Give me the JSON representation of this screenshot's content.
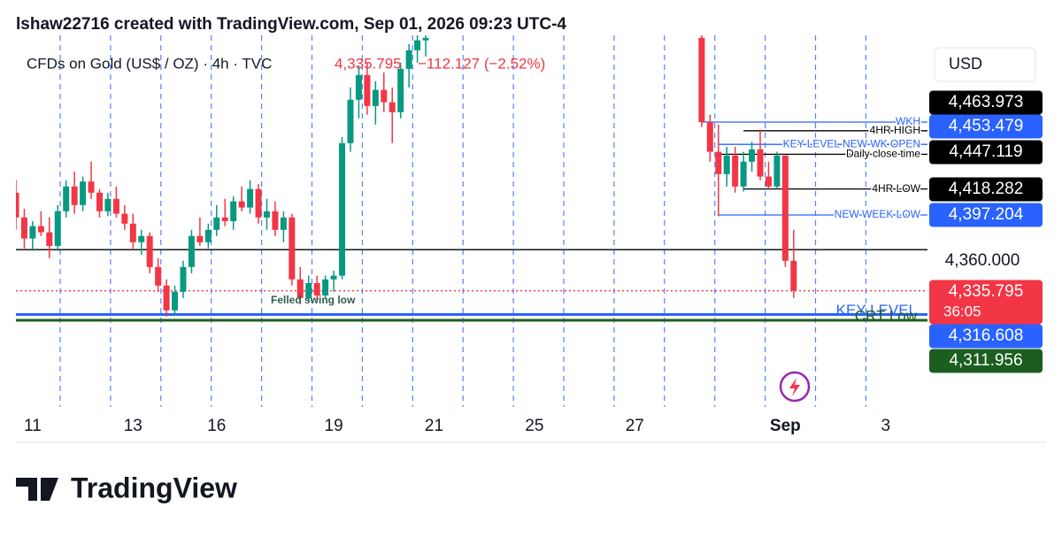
{
  "header": "lshaw22716 created with TradingView.com, Sep 01, 2026 09:23 UTC-4",
  "chart_data": {
    "type": "candlestick",
    "title": "CFDs on Gold (US$ / OZ) · 4h · TVC",
    "last_price": "4,335.795",
    "change": "−112.127 (−2.52%)",
    "currency": "USD",
    "up_color": "#089981",
    "down_color": "#f23645",
    "xlim": [
      0,
      109
    ],
    "xticks": [
      {
        "value": 2,
        "label": "11"
      },
      {
        "value": 14,
        "label": "13"
      },
      {
        "value": 24,
        "label": "16"
      },
      {
        "value": 38,
        "label": "19"
      },
      {
        "value": 50,
        "label": "21"
      },
      {
        "value": 62,
        "label": "25"
      },
      {
        "value": 74,
        "label": "27"
      },
      {
        "value": 92,
        "label": "Sep"
      },
      {
        "value": 104,
        "label": "3"
      }
    ],
    "ylim": [
      4242,
      4542
    ],
    "yticks": [
      {
        "value": 4360,
        "label": "4,360.000"
      }
    ],
    "series": [
      {
        "x": [
          0,
          1,
          2,
          3,
          4,
          5,
          6,
          7,
          8,
          9,
          10,
          11,
          12,
          13,
          14,
          15,
          16,
          17,
          18,
          19,
          20,
          21,
          22,
          23,
          24,
          25,
          26,
          27,
          28,
          29,
          30,
          31,
          32,
          33,
          34,
          35,
          36,
          37,
          38,
          39,
          40,
          41,
          42,
          43,
          44,
          45,
          46,
          47,
          48,
          49,
          82,
          83,
          84,
          85,
          86,
          87,
          88,
          89,
          90,
          91,
          92,
          93
        ],
        "open": [
          4415,
          4395,
          4378,
          4388,
          4383,
          4372,
          4400,
          4420,
          4405,
          4424,
          4415,
          4400,
          4410,
          4398,
          4390,
          4375,
          4380,
          4355,
          4340,
          4320,
          4335,
          4355,
          4380,
          4375,
          4385,
          4395,
          4392,
          4408,
          4403,
          4418,
          4395,
          4400,
          4385,
          4395,
          4345,
          4330,
          4342,
          4332,
          4345,
          4348,
          4455,
          4490,
          4510,
          4485,
          4498,
          4488,
          4480,
          4515,
          4530,
          4538,
          4540,
          4472,
          4448,
          4430,
          4445,
          4420,
          4440,
          4450,
          4428,
          4420,
          4445,
          4360
        ],
        "high": [
          4425,
          4402,
          4392,
          4400,
          4395,
          4405,
          4425,
          4432,
          4428,
          4440,
          4418,
          4415,
          4420,
          4405,
          4398,
          4385,
          4383,
          4362,
          4345,
          4340,
          4360,
          4385,
          4395,
          4390,
          4405,
          4410,
          4412,
          4420,
          4425,
          4422,
          4410,
          4408,
          4400,
          4398,
          4355,
          4348,
          4348,
          4348,
          4352,
          4460,
          4500,
          4518,
          4520,
          4505,
          4512,
          4500,
          4520,
          4535,
          4542,
          4542,
          4542,
          4478,
          4470,
          4452,
          4452,
          4448,
          4456,
          4466,
          4440,
          4448,
          4445,
          4385
        ],
        "low": [
          4385,
          4370,
          4368,
          4380,
          4362,
          4368,
          4395,
          4398,
          4400,
          4410,
          4395,
          4396,
          4395,
          4385,
          4370,
          4365,
          4350,
          4335,
          4315,
          4316,
          4330,
          4350,
          4372,
          4370,
          4380,
          4388,
          4385,
          4400,
          4398,
          4390,
          4385,
          4380,
          4375,
          4340,
          4325,
          4328,
          4328,
          4330,
          4335,
          4345,
          4448,
          4475,
          4478,
          4470,
          4480,
          4455,
          4475,
          4500,
          4520,
          4525,
          4468,
          4440,
          4396,
          4420,
          4415,
          4416,
          4432,
          4425,
          4418,
          4418,
          4355,
          4330
        ],
        "close": [
          4395,
          4378,
          4388,
          4383,
          4372,
          4400,
          4420,
          4405,
          4424,
          4415,
          4400,
          4410,
          4398,
          4390,
          4375,
          4380,
          4355,
          4340,
          4320,
          4335,
          4355,
          4380,
          4375,
          4385,
          4395,
          4392,
          4408,
          4403,
          4418,
          4395,
          4400,
          4385,
          4395,
          4345,
          4330,
          4342,
          4332,
          4345,
          4348,
          4455,
          4490,
          4510,
          4485,
          4498,
          4488,
          4480,
          4515,
          4530,
          4538,
          4540,
          4472,
          4448,
          4430,
          4445,
          4420,
          4440,
          4450,
          4428,
          4420,
          4445,
          4360,
          4335.795
        ]
      }
    ],
    "levels": [
      {
        "label": "WKH",
        "value": 4472,
        "x0": 82,
        "color": "#2962ff"
      },
      {
        "label": "4HR HIGH",
        "value": 4465,
        "x0": 87,
        "color": "#000000"
      },
      {
        "label": "KEY LEVEL NEW WK OPEN",
        "value": 4454,
        "x0": 84,
        "color": "#2962ff"
      },
      {
        "label": "Daily close time",
        "value": 4446,
        "x0": 84,
        "color": "#000000"
      },
      {
        "label": "4HR LOW",
        "value": 4418,
        "x0": 87,
        "color": "#000000"
      },
      {
        "label": "NEW WEEK LOW",
        "value": 4397,
        "x0": 84,
        "color": "#2962ff"
      },
      {
        "value": 4369,
        "x0": 0,
        "color": "#000000"
      },
      {
        "label": "KEY LEVEL",
        "value": 4316.608,
        "x0": 0,
        "color": "#2962ff"
      },
      {
        "label": "CRT Low",
        "value": 4311.956,
        "x0": 0,
        "color": "#1b5e20"
      },
      {
        "value": 4335.795,
        "x0": 0,
        "color": "#f23645"
      }
    ],
    "annotation": "Felled swing low",
    "price_labels": [
      {
        "value": 4463.973,
        "label": "4,463.973",
        "color": "#000000"
      },
      {
        "value": 4453.479,
        "label": "4,453.479",
        "color": "#2962ff"
      },
      {
        "value": 4447.119,
        "label": "4,447.119",
        "color": "#000000"
      },
      {
        "value": 4418.282,
        "label": "4,418.282",
        "color": "#000000"
      },
      {
        "value": 4397.204,
        "label": "4,397.204",
        "color": "#2962ff"
      },
      {
        "value": 4335.795,
        "label": "4,335.795",
        "color": "#f23645",
        "countdown": "36:05"
      },
      {
        "value": 4316.608,
        "label": "4,316.608",
        "color": "#2962ff"
      },
      {
        "value": 4311.956,
        "label": "4,311.956",
        "color": "#1b5e20"
      }
    ]
  },
  "footer": "TradingView"
}
